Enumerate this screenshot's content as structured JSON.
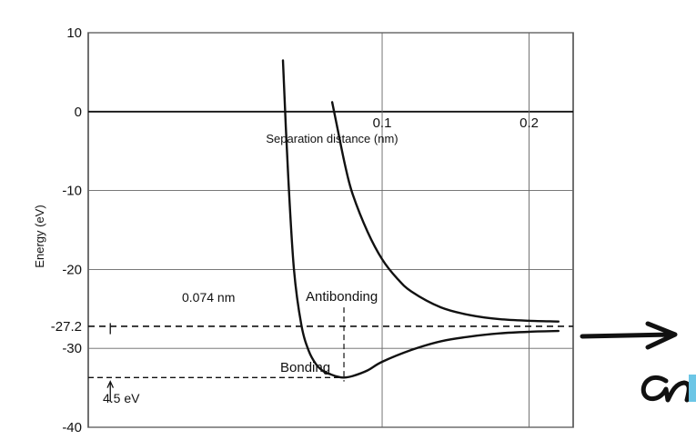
{
  "chart_data": {
    "type": "line",
    "title": "",
    "xlabel": "Separation distance (nm)",
    "ylabel": "Energy (eV)",
    "xlim": [
      -0.1,
      0.23
    ],
    "ylim": [
      -40,
      10
    ],
    "x_ticks": [
      {
        "value": 0.1,
        "label": "0.1"
      },
      {
        "value": 0.2,
        "label": "0.2"
      }
    ],
    "y_ticks": [
      {
        "value": 10,
        "label": "10"
      },
      {
        "value": 0,
        "label": "0"
      },
      {
        "value": -10,
        "label": "-10"
      },
      {
        "value": -20,
        "label": "-20"
      },
      {
        "value": -27.2,
        "label": "-27.2"
      },
      {
        "value": -30,
        "label": "-30"
      },
      {
        "value": -40,
        "label": "-40"
      }
    ],
    "grid": true,
    "series": [
      {
        "name": "Bonding",
        "x": [
          0.0325,
          0.036,
          0.04,
          0.045,
          0.05,
          0.055,
          0.06,
          0.065,
          0.07,
          0.074,
          0.08,
          0.09,
          0.1,
          0.12,
          0.14,
          0.16,
          0.18,
          0.2,
          0.22
        ],
        "y": [
          6.5,
          -8,
          -20,
          -27,
          -30.3,
          -32,
          -32.9,
          -33.3,
          -33.6,
          -33.7,
          -33.5,
          -32.8,
          -31.7,
          -30.2,
          -29.1,
          -28.5,
          -28.1,
          -27.9,
          -27.8
        ]
      },
      {
        "name": "Antibonding",
        "x": [
          0.066,
          0.07,
          0.075,
          0.08,
          0.09,
          0.1,
          0.11,
          0.12,
          0.14,
          0.16,
          0.18,
          0.2,
          0.22
        ],
        "y": [
          1.2,
          -2.5,
          -7,
          -10.5,
          -15.2,
          -18.7,
          -21.1,
          -22.8,
          -24.8,
          -25.8,
          -26.3,
          -26.5,
          -26.6
        ]
      }
    ],
    "reference_lines": [
      {
        "y": -27.2
      },
      {
        "y": -33.7
      }
    ],
    "annotations": [
      {
        "label": "0.074 nm",
        "x": 0.074
      },
      {
        "label": "4.5 eV"
      },
      {
        "label": "Antibonding"
      },
      {
        "label": "Bonding"
      }
    ]
  }
}
